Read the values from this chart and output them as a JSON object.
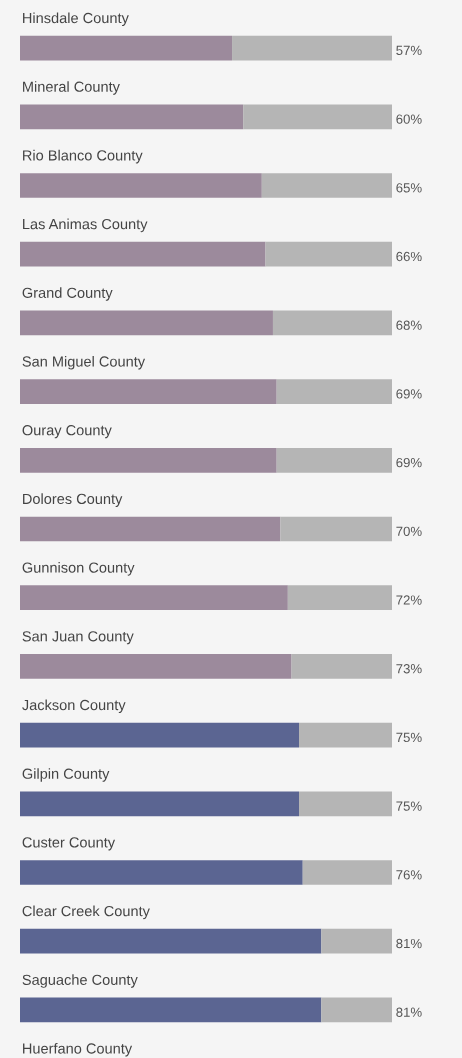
{
  "chart_data": {
    "type": "bar",
    "orientation": "horizontal",
    "stacked": true,
    "categories": [
      "Hinsdale County",
      "Mineral County",
      "Rio Blanco County",
      "Las Animas County",
      "Grand County",
      "San Miguel County",
      "Ouray County",
      "Dolores County",
      "Gunnison County",
      "San Juan County",
      "Jackson County",
      "Gilpin County",
      "Custer County",
      "Clear Creek County",
      "Saguache County",
      "Huerfano County"
    ],
    "series": [
      {
        "colors": [
          "#9c8a9c",
          "#9c8a9c",
          "#9c8a9c",
          "#9c8a9c",
          "#9c8a9c",
          "#9c8a9c",
          "#9c8a9c",
          "#9c8a9c",
          "#9c8a9c",
          "#9c8a9c",
          "#5b6592",
          "#5b6592",
          "#5b6592",
          "#5b6592",
          "#5b6592",
          "#5b6592"
        ],
        "values": [
          57,
          60,
          65,
          66,
          68,
          69,
          69,
          70,
          72,
          73,
          75,
          75,
          76,
          81,
          81,
          null
        ],
        "value_labels": [
          "57%",
          "60%",
          "65%",
          "66%",
          "68%",
          "69%",
          "69%",
          "70%",
          "72%",
          "73%",
          "75%",
          "75%",
          "76%",
          "81%",
          "81%",
          null
        ]
      },
      {
        "color": "#b5b5b5",
        "values": [
          43,
          40,
          35,
          34,
          32,
          31,
          31,
          30,
          28,
          27,
          25,
          25,
          24,
          19,
          19,
          null
        ]
      }
    ],
    "xlim": [
      0,
      100
    ]
  }
}
